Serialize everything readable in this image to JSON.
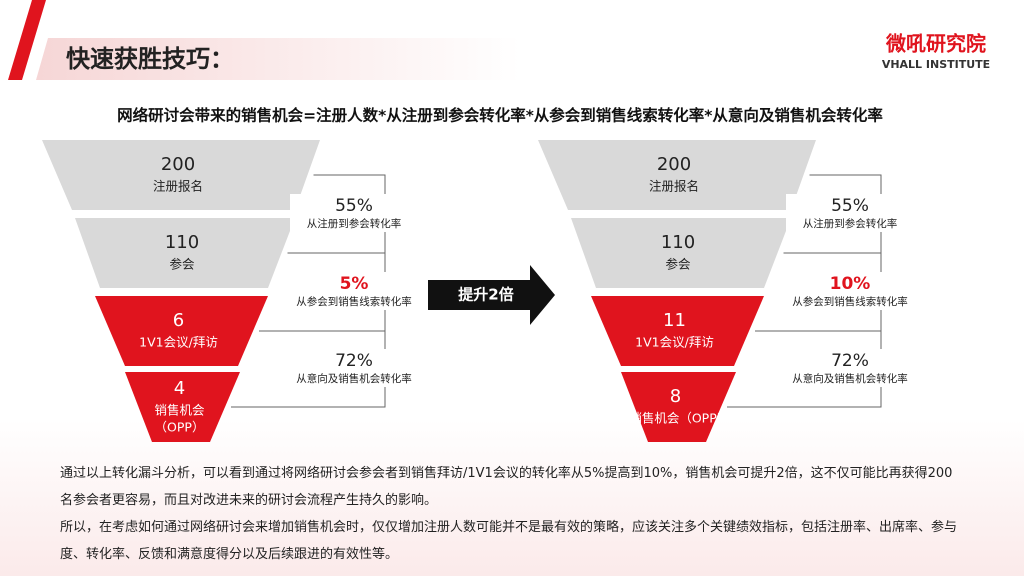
{
  "header": {
    "title": "快速获胜技巧：",
    "logo": "微吼研究院",
    "logo_sub": "VHALL INSTITUTE"
  },
  "formula": "网络研讨会带来的销售机会=注册人数*从注册到参会转化率*从参会到销售线索转化率*从意向及销售机会转化率",
  "funnels": [
    {
      "stages": [
        {
          "value": "200",
          "lines": [
            "注册报名"
          ],
          "color": "#d9d9d9"
        },
        {
          "value": "110",
          "lines": [
            "参会"
          ],
          "color": "#d9d9d9"
        },
        {
          "value": "6",
          "lines": [
            "1V1会议/拜访"
          ],
          "color": "#e0141e"
        },
        {
          "value": "4",
          "lines": [
            "销售机会",
            "（OPP）"
          ],
          "color": "#e0141e"
        }
      ],
      "rates": [
        {
          "value": "55%",
          "label": "从注册到参会转化率",
          "color": "#222222"
        },
        {
          "value": "5%",
          "label": "从参会到销售线索转化率",
          "color": "#e0141e"
        },
        {
          "value": "72%",
          "label": "从意向及销售机会转化率",
          "color": "#222222"
        }
      ]
    },
    {
      "stages": [
        {
          "value": "200",
          "lines": [
            "注册报名"
          ],
          "color": "#d9d9d9"
        },
        {
          "value": "110",
          "lines": [
            "参会"
          ],
          "color": "#d9d9d9"
        },
        {
          "value": "11",
          "lines": [
            "1V1会议/拜访"
          ],
          "color": "#e0141e"
        },
        {
          "value": "8",
          "lines": [
            "销售机会（OPP)"
          ],
          "color": "#e0141e"
        }
      ],
      "rates": [
        {
          "value": "55%",
          "label": "从注册到参会转化率",
          "color": "#222222"
        },
        {
          "value": "10%",
          "label": "从参会到销售线索转化率",
          "color": "#e0141e"
        },
        {
          "value": "72%",
          "label": "从意向及销售机会转化率",
          "color": "#222222"
        }
      ]
    }
  ],
  "arrow": "提升2倍",
  "paragraphs": [
    "通过以上转化漏斗分析，可以看到通过将网络研讨会参会者到销售拜访/1V1会议的转化率从5%提高到10%，销售机会可提升2倍，这不仅可能比再获得200名参会者更容易，而且对改进未来的研讨会流程产生持久的影响。",
    "所以，在考虑如何通过网络研讨会来增加销售机会时，仅仅增加注册人数可能并不是最有效的策略，应该关注多个关键绩效指标，包括注册率、出席率、参与度、转化率、反馈和满意度得分以及后续跟进的有效性等。"
  ]
}
